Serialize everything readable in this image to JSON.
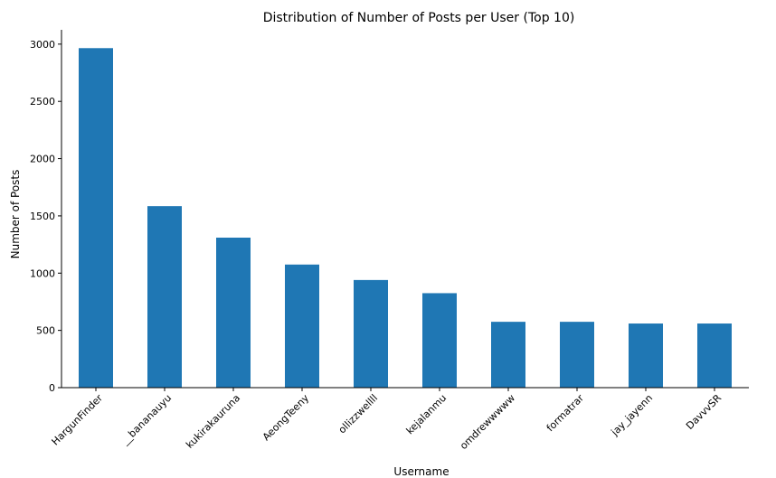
{
  "chart_data": {
    "type": "bar",
    "title": "Distribution of Number of Posts per User (Top 10)",
    "xlabel": "Username",
    "ylabel": "Number of Posts",
    "categories": [
      "HargunFinder",
      "__bananauyu",
      "kukirakauruna",
      "AeongTeeny",
      "ollizzwellll",
      "kejalanmu",
      "omdrewwwww",
      "formatrar",
      "jay_jayenn",
      "DavvvSR"
    ],
    "values": [
      2965,
      1585,
      1310,
      1075,
      940,
      825,
      575,
      575,
      560,
      560
    ],
    "ylim": [
      0,
      3125
    ],
    "yticks": [
      0,
      500,
      1000,
      1500,
      2000,
      2500,
      3000
    ],
    "grid": false,
    "bar_color": "#1f77b4"
  }
}
